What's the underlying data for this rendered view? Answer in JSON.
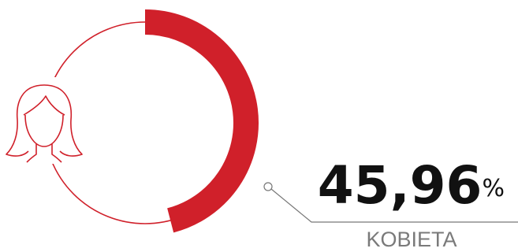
{
  "chart_data": {
    "type": "donut",
    "categories": [
      "KOBIETA"
    ],
    "values": [
      45.96
    ],
    "value_labels": [
      "45,96%"
    ],
    "color": "#d0202a"
  }
}
